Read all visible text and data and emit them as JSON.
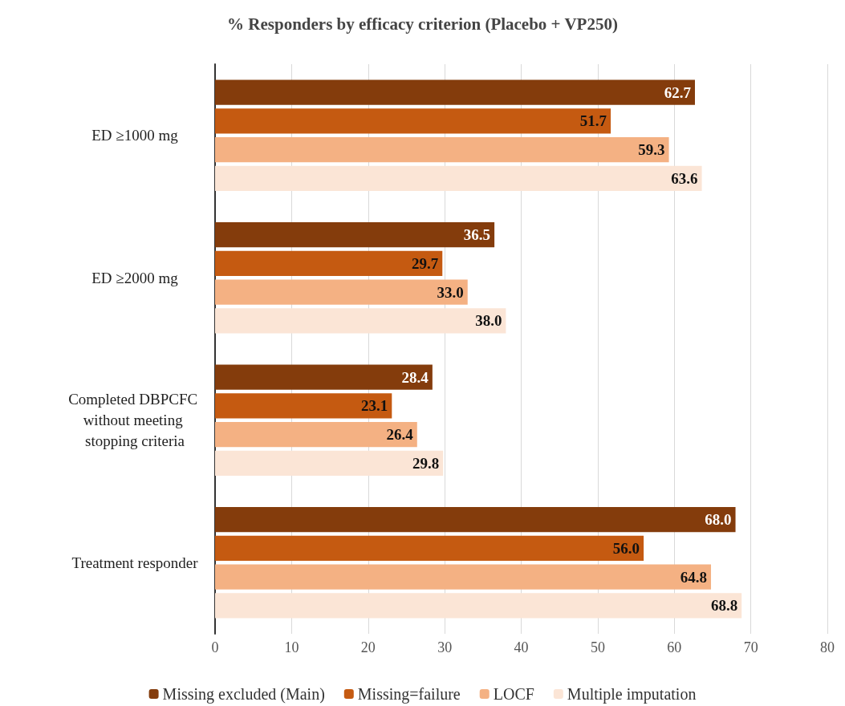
{
  "chart_data": {
    "type": "bar",
    "orientation": "horizontal",
    "title": "% Responders by efficacy criterion (Placebo + VP250)",
    "categories": [
      "ED ≥1000 mg",
      "ED ≥2000 mg",
      "Completed DBPCFC without meeting stopping criteria",
      "Treatment responder"
    ],
    "series": [
      {
        "name": "Missing excluded (Main)",
        "color": "#843c0c",
        "values": [
          62.7,
          36.5,
          28.4,
          68.0
        ],
        "value_labels": [
          "62.7",
          "36.5",
          "28.4",
          "68.0"
        ]
      },
      {
        "name": "Missing=failure",
        "color": "#c55a11",
        "values": [
          51.7,
          29.7,
          23.1,
          56.0
        ],
        "value_labels": [
          "51.7",
          "29.7",
          "23.1",
          "56.0"
        ]
      },
      {
        "name": "LOCF",
        "color": "#f4b183",
        "values": [
          59.3,
          33.0,
          26.4,
          64.8
        ],
        "value_labels": [
          "59.3",
          "33.0",
          "26.4",
          "64.8"
        ]
      },
      {
        "name": "Multiple imputation",
        "color": "#fbe5d6",
        "values": [
          63.6,
          38.0,
          29.8,
          68.8
        ],
        "value_labels": [
          "63.6",
          "38.0",
          "29.8",
          "68.8"
        ]
      }
    ],
    "xlim": [
      0,
      80
    ],
    "xticks": [
      0,
      10,
      20,
      30,
      40,
      50,
      60,
      70,
      80
    ],
    "grid": "x",
    "legend": "bottom"
  }
}
